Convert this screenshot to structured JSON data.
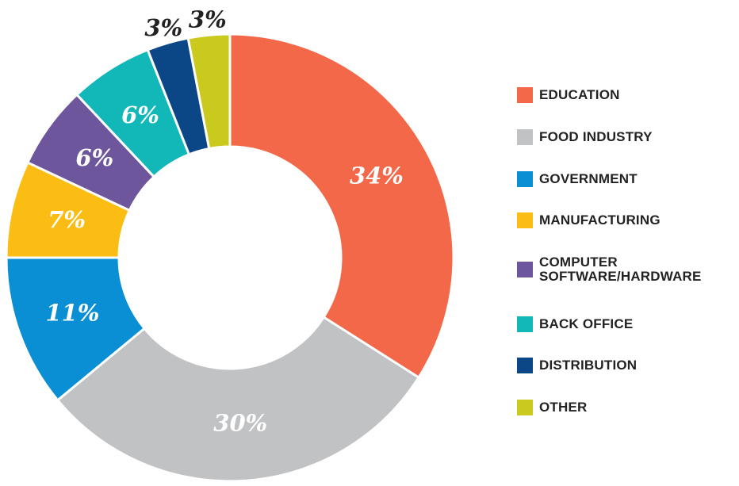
{
  "chart_data": {
    "type": "donut",
    "categories": [
      "EDUCATION",
      "FOOD INDUSTRY",
      "GOVERNMENT",
      "MANUFACTURING",
      "COMPUTER SOFTWARE/HARDWARE",
      "BACK OFFICE",
      "DISTRIBUTION",
      "OTHER"
    ],
    "values": [
      34,
      30,
      11,
      7,
      6,
      6,
      3,
      3
    ],
    "value_labels": [
      "34%",
      "30%",
      "11%",
      "7%",
      "6%",
      "6%",
      "3%",
      "3%"
    ],
    "colors": [
      "#f26849",
      "#c1c2c4",
      "#0a8fd4",
      "#fbbc14",
      "#6d569c",
      "#12b8b8",
      "#0b4686",
      "#c9c91e"
    ],
    "legend": "right"
  }
}
